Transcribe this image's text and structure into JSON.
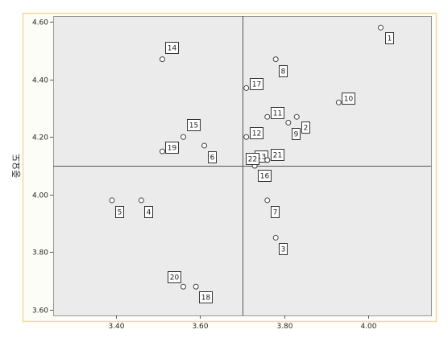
{
  "chart_data": {
    "type": "scatter",
    "title": "",
    "xlabel": "",
    "ylabel": "중요도",
    "xlim": [
      3.25,
      4.15
    ],
    "ylim": [
      3.58,
      4.62
    ],
    "xticks": [
      3.4,
      3.6,
      3.8,
      4.0
    ],
    "xtick_labels": [
      "3.40",
      "3.60",
      "3.80",
      "4.00"
    ],
    "yticks": [
      3.6,
      3.8,
      4.0,
      4.2,
      4.4,
      4.6
    ],
    "ytick_labels": [
      "3.60",
      "3.80",
      "4.00",
      "4.20",
      "4.40",
      "4.60"
    ],
    "reference_lines": {
      "x": 3.7,
      "y": 4.1
    },
    "grid": false,
    "colors": {
      "plot_bg": "#ebebeb",
      "frame": "#f2d9a0",
      "marker": "#444444",
      "line": "#555555"
    },
    "points": [
      {
        "label": "1",
        "x": 4.03,
        "y": 4.58
      },
      {
        "label": "2",
        "x": 3.83,
        "y": 4.27
      },
      {
        "label": "3",
        "x": 3.78,
        "y": 3.85
      },
      {
        "label": "4",
        "x": 3.46,
        "y": 3.98
      },
      {
        "label": "5",
        "x": 3.39,
        "y": 3.98
      },
      {
        "label": "6",
        "x": 3.61,
        "y": 4.17
      },
      {
        "label": "7",
        "x": 3.76,
        "y": 3.98
      },
      {
        "label": "8",
        "x": 3.78,
        "y": 4.47
      },
      {
        "label": "9",
        "x": 3.81,
        "y": 4.25
      },
      {
        "label": "10",
        "x": 3.93,
        "y": 4.32
      },
      {
        "label": "11",
        "x": 3.76,
        "y": 4.27
      },
      {
        "label": "12",
        "x": 3.71,
        "y": 4.2
      },
      {
        "label": "13",
        "x": 3.73,
        "y": 4.1
      },
      {
        "label": "14",
        "x": 3.51,
        "y": 4.47
      },
      {
        "label": "15",
        "x": 3.56,
        "y": 4.2
      },
      {
        "label": "16",
        "x": 3.73,
        "y": 4.1
      },
      {
        "label": "17",
        "x": 3.71,
        "y": 4.37
      },
      {
        "label": "18",
        "x": 3.59,
        "y": 3.68
      },
      {
        "label": "19",
        "x": 3.51,
        "y": 4.15
      },
      {
        "label": "20",
        "x": 3.56,
        "y": 3.68
      },
      {
        "label": "21",
        "x": 3.76,
        "y": 4.12
      },
      {
        "label": "22",
        "x": 3.76,
        "y": 4.12
      }
    ]
  }
}
